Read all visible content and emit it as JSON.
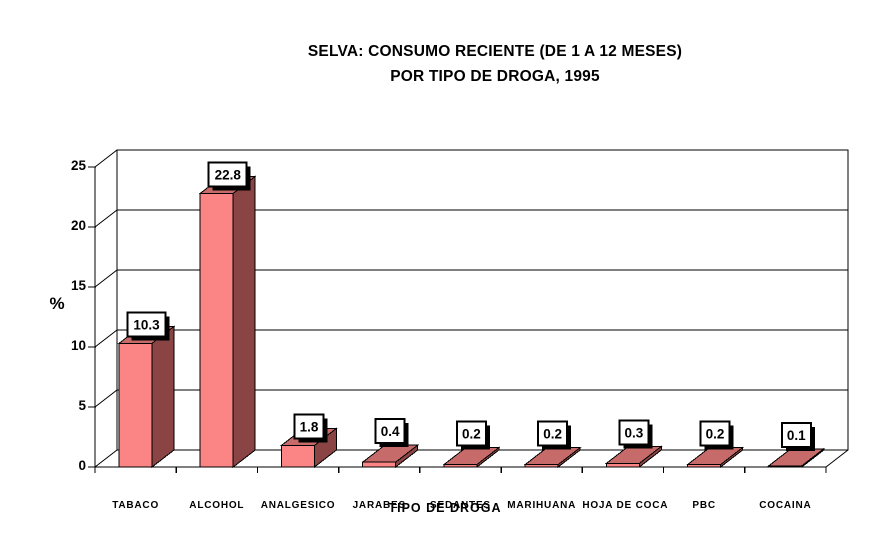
{
  "title": {
    "line1": "SELVA: CONSUMO RECIENTE (DE 1 A 12 MESES)",
    "line2": "POR TIPO DE DROGA, 1995"
  },
  "chart_data": {
    "type": "bar",
    "style": "3d-perspective",
    "title": "SELVA: CONSUMO RECIENTE (DE 1 A 12 MESES) POR TIPO DE DROGA, 1995",
    "categories": [
      "TABACO",
      "ALCOHOL",
      "ANALGESICO",
      "JARABES",
      "SEDANTES",
      "MARIHUANA",
      "HOJA DE COCA",
      "PBC",
      "COCAINA"
    ],
    "values": [
      10.3,
      22.8,
      1.8,
      0.4,
      0.2,
      0.2,
      0.3,
      0.2,
      0.1
    ],
    "data_labels": [
      "10.3",
      "22.8",
      "1.8",
      "0.4",
      "0.2",
      "0.2",
      "0.3",
      "0.2",
      "0.1"
    ],
    "xlabel": "TIPO DE DROGA",
    "ylabel": "%",
    "ylim": [
      0,
      25
    ],
    "yticks": [
      0,
      5,
      10,
      15,
      20,
      25
    ],
    "grid": true,
    "legend": "none",
    "colors": {
      "bar_front": "#FB8484",
      "bar_top": "#C76A6A",
      "bar_side": "#8A4444",
      "outline": "#000000",
      "label_box_bg": "#FFFFFF",
      "label_box_border": "#000000",
      "label_box_shadow": "#000000",
      "background": "#FFFFFF",
      "wall": "#FFFFFF"
    }
  }
}
